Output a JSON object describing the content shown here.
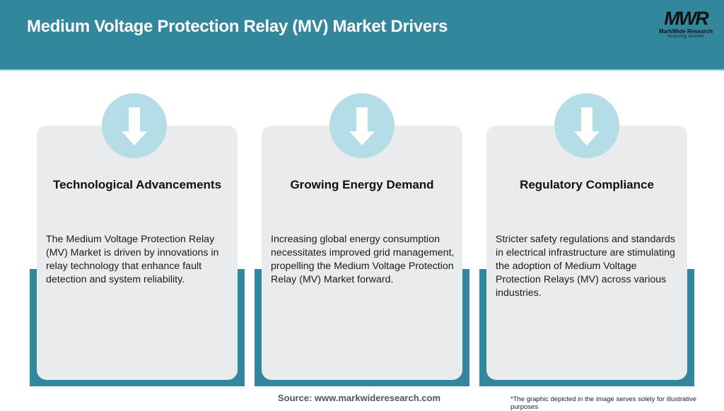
{
  "header": {
    "title": "Medium Voltage Protection Relay (MV) Market Drivers",
    "bg_color": "#33879d"
  },
  "logo": {
    "mark": "MWR",
    "name": "MarkWide Research",
    "tagline": "Inspiring Growth"
  },
  "cards": [
    {
      "icon": "arrow-down-icon",
      "title": "Technological Advancements",
      "text": "The Medium Voltage Protection Relay (MV) Market is driven by innovations in relay technology that enhance fault detection and system reliability."
    },
    {
      "icon": "arrow-down-icon",
      "title": "Growing Energy Demand",
      "text": "Increasing global energy consumption necessitates improved grid management, propelling the Medium Voltage Protection Relay (MV) Market forward."
    },
    {
      "icon": "arrow-down-icon",
      "title": "Regulatory Compliance",
      "text": "Stricter safety regulations and standards in electrical infrastructure are stimulating the adoption of Medium Voltage Protection Relays (MV) across various industries."
    }
  ],
  "footer": {
    "source": "Source: www.markwideresearch.com",
    "note": "*The graphic depicted in the image serves solely for illustrative purposes"
  }
}
